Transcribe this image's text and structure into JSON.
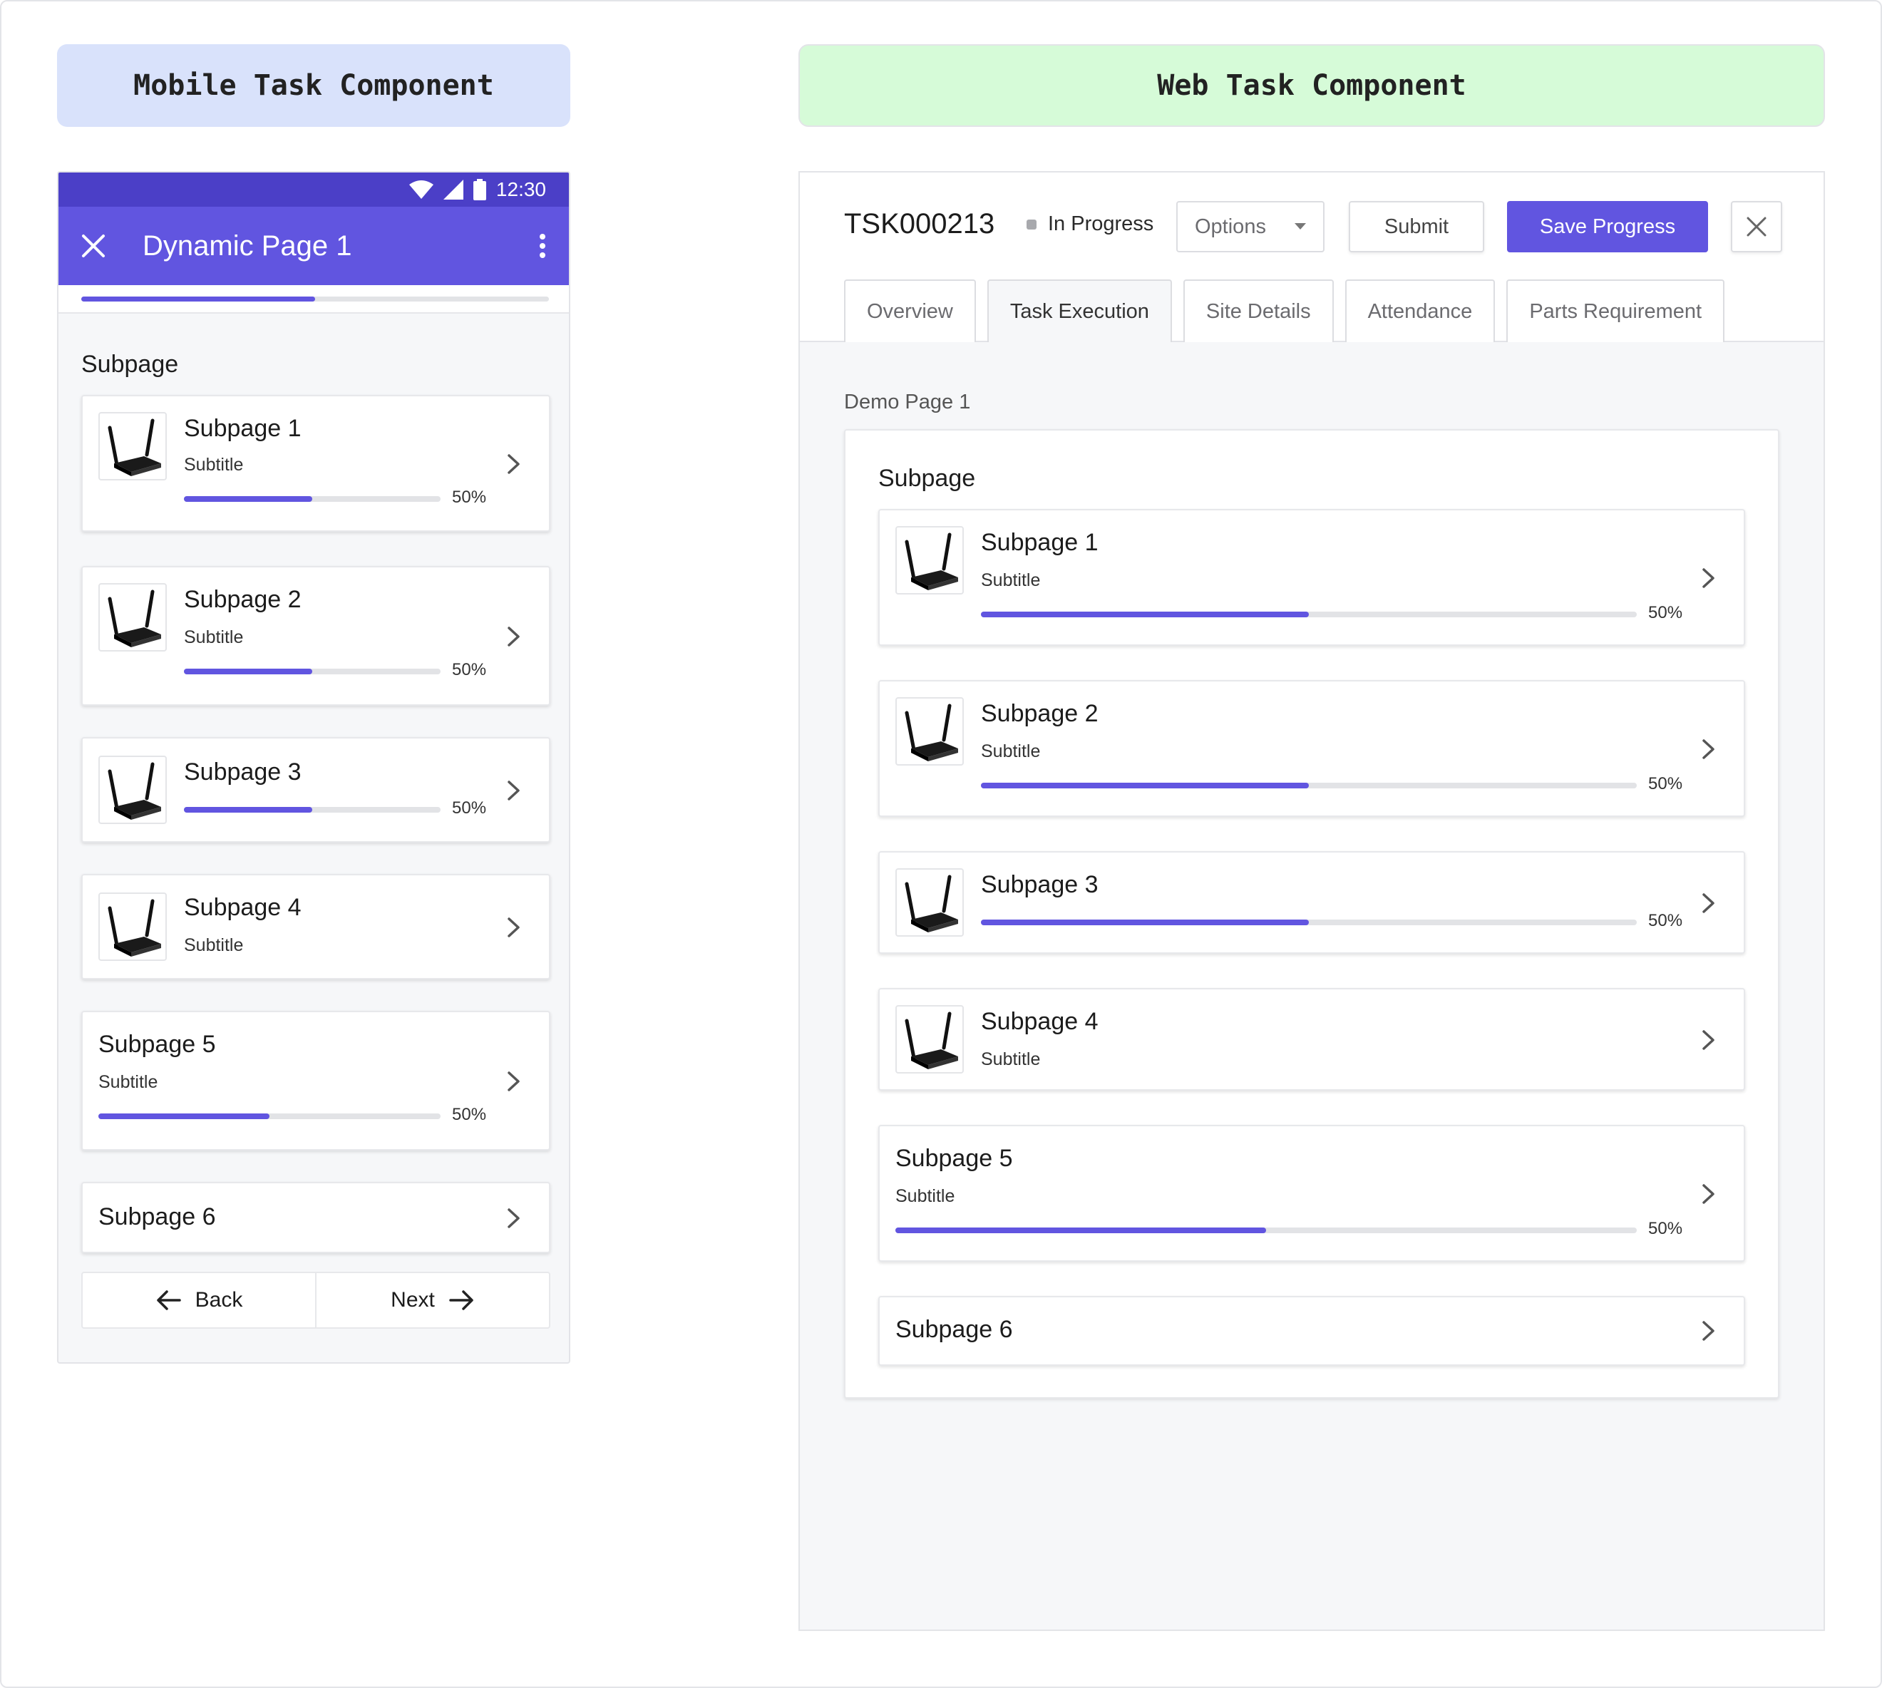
{
  "banners": {
    "mobile": "Mobile Task Component",
    "web": "Web Task Component"
  },
  "mobile": {
    "status_time": "12:30",
    "title": "Dynamic Page 1",
    "page_progress": 0.5,
    "section_title": "Subpage",
    "cards": [
      {
        "title": "Subpage 1",
        "subtitle": "Subtitle",
        "progress_label": "50%",
        "progress": 0.5
      },
      {
        "title": "Subpage 2",
        "subtitle": "Subtitle",
        "progress_label": "50%",
        "progress": 0.5
      },
      {
        "title": "Subpage 3",
        "progress_label": "50%",
        "progress": 0.5
      },
      {
        "title": "Subpage 4",
        "subtitle": "Subtitle"
      },
      {
        "title": "Subpage 5",
        "subtitle": "Subtitle",
        "progress_label": "50%",
        "progress": 0.5
      },
      {
        "title": "Subpage 6"
      }
    ],
    "back_label": "Back",
    "next_label": "Next"
  },
  "web": {
    "task_id": "TSK000213",
    "status": "In Progress",
    "options_label": "Options",
    "submit_label": "Submit",
    "save_label": "Save Progress",
    "tabs": [
      "Overview",
      "Task Execution",
      "Site Details",
      "Attendance",
      "Parts Requirement"
    ],
    "active_tab": "Task Execution",
    "page_label": "Demo Page 1",
    "section_title": "Subpage",
    "cards": [
      {
        "title": "Subpage 1",
        "subtitle": "Subtitle",
        "progress_label": "50%",
        "progress": 0.5
      },
      {
        "title": "Subpage 2",
        "subtitle": "Subtitle",
        "progress_label": "50%",
        "progress": 0.5
      },
      {
        "title": "Subpage 3",
        "progress_label": "50%",
        "progress": 0.5
      },
      {
        "title": "Subpage 4",
        "subtitle": "Subtitle"
      },
      {
        "title": "Subpage 5",
        "subtitle": "Subtitle",
        "progress_label": "50%",
        "progress": 0.5
      },
      {
        "title": "Subpage 6"
      }
    ]
  },
  "colors": {
    "accent": "#6155e0",
    "accent_dark": "#4b3fc7",
    "mobile_banner": "#d9e2fb",
    "web_banner": "#d6fbd8"
  },
  "icons": {
    "card_thumbnail": "router-icon",
    "card_arrow": "chevron-right-icon"
  }
}
